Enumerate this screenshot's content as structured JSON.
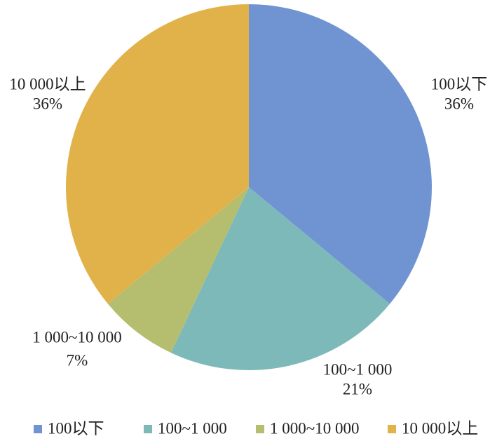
{
  "chart_data": {
    "type": "pie",
    "categories": [
      "100以下",
      "100~1 000",
      "1 000~10 000",
      "10 000以上"
    ],
    "values": [
      36,
      21,
      7,
      36
    ],
    "value_labels": [
      "36%",
      "21%",
      "7%",
      "36%"
    ],
    "colors": [
      "#7094d2",
      "#7db9b9",
      "#b5bd6f",
      "#e2b24a"
    ],
    "legend": "bottom"
  }
}
